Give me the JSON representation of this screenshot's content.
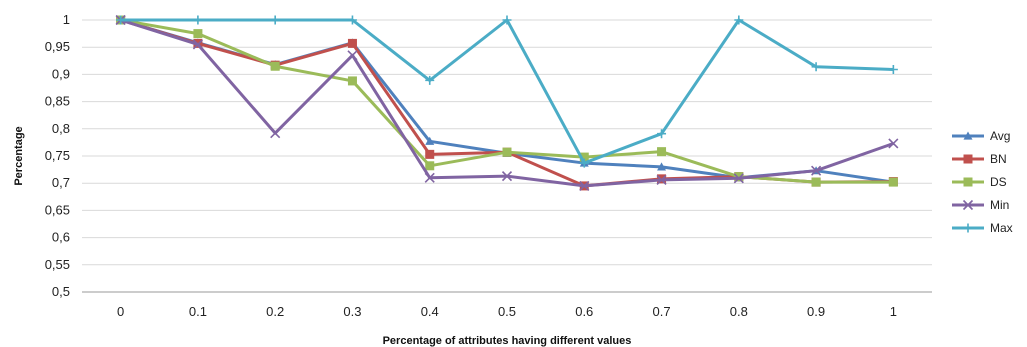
{
  "chart_data": {
    "type": "line",
    "xlabel": "Percentage of attributes having different values",
    "ylabel": "Percentage",
    "categories": [
      "0",
      "0.1",
      "0.2",
      "0.3",
      "0.4",
      "0.5",
      "0.6",
      "0.7",
      "0.8",
      "0.9",
      "1"
    ],
    "y_tick_labels": [
      "0,5",
      "0,55",
      "0,6",
      "0,65",
      "0,7",
      "0,75",
      "0,8",
      "0,85",
      "0,9",
      "0,95",
      "1"
    ],
    "ylim": [
      0.5,
      1
    ],
    "grid": true,
    "legend_position": "right",
    "series": [
      {
        "name": "Avg",
        "color": "#4f81bd",
        "marker": "triangle",
        "values": [
          1,
          0.958,
          0.918,
          0.958,
          0.777,
          0.755,
          0.737,
          0.73,
          0.71,
          0.723,
          0.702
        ]
      },
      {
        "name": "BN",
        "color": "#c0504d",
        "marker": "square",
        "values": [
          1,
          0.957,
          0.917,
          0.957,
          0.753,
          0.757,
          0.695,
          0.708,
          0.712,
          0.702,
          0.703
        ]
      },
      {
        "name": "DS",
        "color": "#9bbb59",
        "marker": "square",
        "values": [
          1,
          0.975,
          0.915,
          0.888,
          0.732,
          0.757,
          0.748,
          0.758,
          0.712,
          0.702,
          0.702
        ]
      },
      {
        "name": "Min",
        "color": "#8064a2",
        "marker": "x",
        "values": [
          1,
          0.955,
          0.792,
          0.935,
          0.71,
          0.713,
          0.695,
          0.706,
          0.709,
          0.723,
          0.773
        ]
      },
      {
        "name": "Max",
        "color": "#4bacc6",
        "marker": "plus",
        "values": [
          1,
          1,
          1,
          1,
          0.889,
          1,
          0.737,
          0.791,
          1,
          0.914,
          0.909
        ]
      }
    ]
  }
}
